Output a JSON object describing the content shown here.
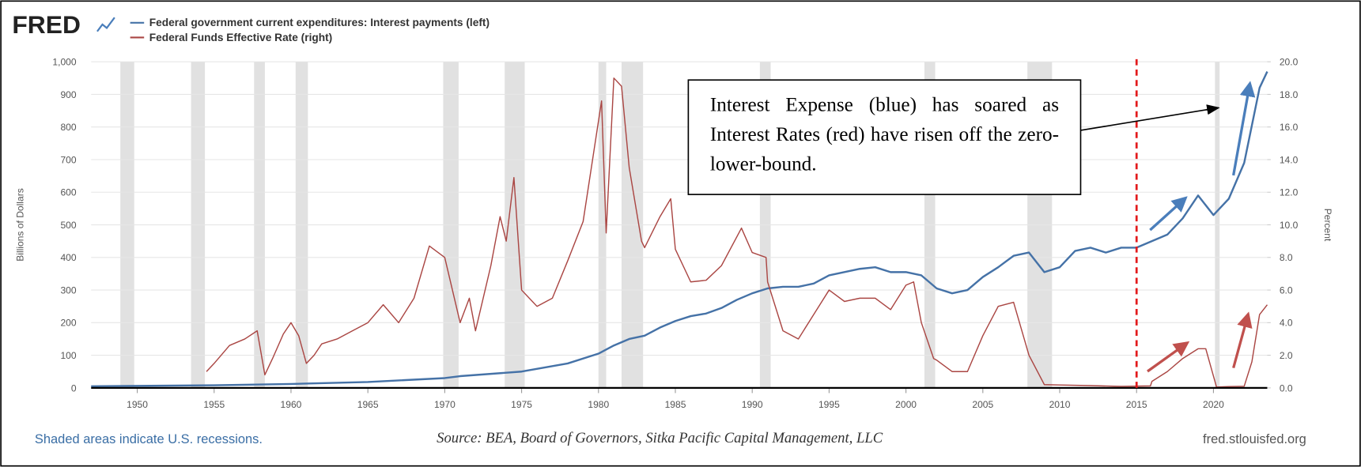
{
  "chart_data": {
    "type": "line",
    "logo": "FRED",
    "ylabel": "Billions of Dollars",
    "y2label": "Percent",
    "recession_note": "Shaded areas indicate U.S. recessions.",
    "source": "Source: BEA, Board of Governors, Sitka Pacific Capital Management, LLC",
    "site": "fred.stlouisfed.org",
    "annotation": "Interest Expense (blue) has soared as Interest Rates (red) have risen off the zero-lower-bound.",
    "vline": 2015,
    "vline_color": "#e31a1c",
    "grid": true,
    "xlim": [
      1947,
      2023.5
    ],
    "xticks": [
      1950,
      1955,
      1960,
      1965,
      1970,
      1975,
      1980,
      1985,
      1990,
      1995,
      2000,
      2005,
      2010,
      2015,
      2020
    ],
    "ylim": [
      0,
      1000
    ],
    "yticks": [
      0,
      100,
      200,
      300,
      400,
      500,
      600,
      700,
      800,
      900,
      {
        "value": 1000,
        "label": "1,000"
      }
    ],
    "y2lim": [
      0,
      20
    ],
    "y2ticks": [
      {
        "value": 0,
        "label": "0.0"
      },
      {
        "value": 2,
        "label": "2.0"
      },
      {
        "value": 4,
        "label": "4.0"
      },
      {
        "value": 6,
        "label": "6.0"
      },
      {
        "value": 8,
        "label": "8.0"
      },
      {
        "value": 10,
        "label": "10.0"
      },
      {
        "value": 12,
        "label": "12.0"
      },
      {
        "value": 14,
        "label": "14.0"
      },
      {
        "value": 16,
        "label": "16.0"
      },
      {
        "value": 18,
        "label": "18.0"
      },
      {
        "value": 20,
        "label": "20.0"
      }
    ],
    "recessions": [
      [
        1948.9,
        1949.8
      ],
      [
        1953.5,
        1954.4
      ],
      [
        1957.6,
        1958.3
      ],
      [
        1960.3,
        1961.1
      ],
      [
        1969.9,
        1970.9
      ],
      [
        1973.9,
        1975.2
      ],
      [
        1980.0,
        1980.5
      ],
      [
        1981.5,
        1982.9
      ],
      [
        1990.5,
        1991.2
      ],
      [
        2001.2,
        2001.9
      ],
      [
        2007.9,
        2009.5
      ],
      [
        2020.1,
        2020.4
      ]
    ],
    "series": [
      {
        "name": "Federal government current expenditures: Interest payments (left)",
        "color": "#4572a7",
        "x": [
          1947,
          1950,
          1955,
          1960,
          1965,
          1970,
          1971,
          1975,
          1978,
          1980,
          1981,
          1982,
          1983,
          1984,
          1985,
          1986,
          1987,
          1988,
          1989,
          1990,
          1991,
          1992,
          1993,
          1994,
          1995,
          1996,
          1997,
          1998,
          1999,
          2000,
          2001,
          2002,
          2003,
          2004,
          2005,
          2006,
          2007,
          2008,
          2009,
          2010,
          2011,
          2012,
          2013,
          2014,
          2015,
          2016,
          2017,
          2018,
          2019,
          2020,
          2021,
          2022,
          2023,
          2023.5
        ],
        "values": [
          5,
          6,
          8,
          12,
          18,
          30,
          36,
          50,
          75,
          105,
          130,
          150,
          160,
          185,
          205,
          220,
          228,
          245,
          270,
          290,
          305,
          310,
          310,
          320,
          345,
          355,
          365,
          370,
          355,
          355,
          345,
          305,
          290,
          300,
          340,
          370,
          405,
          415,
          355,
          370,
          420,
          430,
          415,
          430,
          430,
          450,
          470,
          520,
          590,
          530,
          580,
          690,
          920,
          970
        ]
      },
      {
        "name": "Federal Funds Effective Rate (right)",
        "color": "#aa4643",
        "axis": "y2",
        "x": [
          1954.5,
          1955,
          1956,
          1957,
          1957.8,
          1958.3,
          1958.8,
          1959.5,
          1960,
          1960.5,
          1961,
          1961.5,
          1962,
          1963,
          1964,
          1965,
          1966,
          1967,
          1968,
          1969,
          1970,
          1971,
          1971.6,
          1972,
          1973,
          1973.6,
          1974,
          1974.5,
          1975,
          1976,
          1977,
          1978,
          1979,
          1980.2,
          1980.5,
          1981,
          1981.5,
          1982,
          1982.8,
          1983,
          1984,
          1984.7,
          1985,
          1986,
          1987,
          1988,
          1989.3,
          1990,
          1990.9,
          1991,
          1992,
          1993,
          1994,
          1995,
          1996,
          1997,
          1998,
          1999,
          2000,
          2000.5,
          2001,
          2001.8,
          2002,
          2003,
          2004,
          2005,
          2006,
          2007,
          2008,
          2009,
          2010,
          2012,
          2014,
          2015.9,
          2016,
          2017,
          2018,
          2019,
          2019.5,
          2020.2,
          2021,
          2022,
          2022.5,
          2023,
          2023.5
        ],
        "values": [
          1.0,
          1.5,
          2.6,
          3.0,
          3.5,
          0.8,
          1.8,
          3.3,
          4.0,
          3.2,
          1.5,
          2.0,
          2.7,
          3.0,
          3.5,
          4.0,
          5.1,
          4.0,
          5.5,
          8.7,
          8.0,
          4.0,
          5.5,
          3.5,
          7.5,
          10.5,
          9.0,
          12.9,
          6.0,
          5.0,
          5.5,
          7.8,
          10.2,
          17.6,
          9.5,
          19.0,
          18.5,
          13.5,
          9.0,
          8.6,
          10.5,
          11.6,
          8.5,
          6.5,
          6.6,
          7.5,
          9.8,
          8.3,
          8.0,
          6.5,
          3.5,
          3.0,
          4.5,
          6.0,
          5.3,
          5.5,
          5.5,
          4.8,
          6.3,
          6.5,
          4.0,
          1.8,
          1.7,
          1.0,
          1.0,
          3.2,
          5.0,
          5.25,
          2.0,
          0.2,
          0.18,
          0.14,
          0.09,
          0.12,
          0.4,
          1.0,
          1.8,
          2.4,
          2.4,
          0.05,
          0.08,
          0.1,
          1.6,
          4.5,
          5.1
        ]
      }
    ]
  }
}
